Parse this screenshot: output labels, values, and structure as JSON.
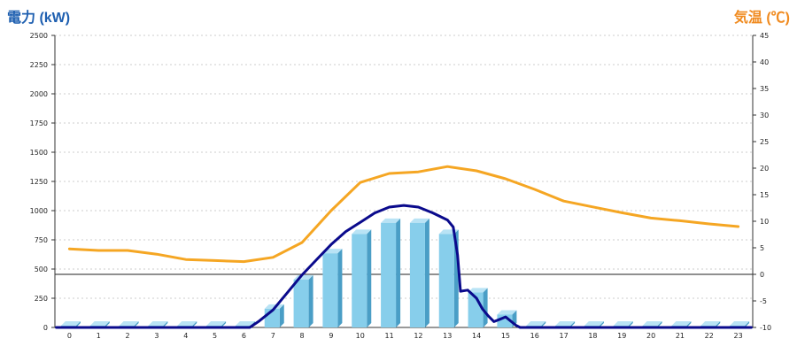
{
  "chart_data": {
    "type": "bar",
    "title": "",
    "left_axis_title": "電力 (kW)",
    "right_axis_title": "気温 (℃)",
    "categories": [
      "0",
      "1",
      "2",
      "3",
      "4",
      "5",
      "6",
      "7",
      "8",
      "9",
      "10",
      "11",
      "12",
      "13",
      "14",
      "15",
      "16",
      "17",
      "18",
      "19",
      "20",
      "21",
      "22",
      "23"
    ],
    "y_left": {
      "min": 0,
      "max": 2500,
      "ticks": [
        0,
        250,
        500,
        750,
        1000,
        1250,
        1500,
        1750,
        2000,
        2250,
        2500
      ]
    },
    "y_right": {
      "min": -10,
      "max": 45,
      "ticks": [
        -10,
        -5,
        0,
        5,
        10,
        15,
        20,
        25,
        30,
        35,
        40,
        45
      ]
    },
    "grid": true,
    "series": [
      {
        "type": "bar",
        "axis": "left",
        "color": "#87ceeb",
        "values": [
          10,
          10,
          10,
          10,
          10,
          10,
          10,
          160,
          410,
          635,
          800,
          895,
          895,
          800,
          300,
          110,
          10,
          10,
          10,
          10,
          10,
          10,
          10,
          10
        ]
      },
      {
        "type": "line",
        "axis": "left",
        "color": "#0a0a8c",
        "points": [
          [
            -0.45,
            0
          ],
          [
            6.2,
            0
          ],
          [
            6.5,
            50
          ],
          [
            7,
            150
          ],
          [
            7.5,
            300
          ],
          [
            8,
            450
          ],
          [
            8.5,
            580
          ],
          [
            9,
            710
          ],
          [
            9.5,
            820
          ],
          [
            10,
            900
          ],
          [
            10.5,
            980
          ],
          [
            11,
            1030
          ],
          [
            11.5,
            1045
          ],
          [
            12,
            1030
          ],
          [
            12.5,
            980
          ],
          [
            13,
            920
          ],
          [
            13.2,
            860
          ],
          [
            13.35,
            620
          ],
          [
            13.45,
            310
          ],
          [
            13.7,
            320
          ],
          [
            14,
            250
          ],
          [
            14.2,
            160
          ],
          [
            14.4,
            100
          ],
          [
            14.6,
            50
          ],
          [
            14.8,
            70
          ],
          [
            15,
            90
          ],
          [
            15.2,
            50
          ],
          [
            15.35,
            20
          ],
          [
            15.5,
            0
          ],
          [
            23.45,
            0
          ]
        ]
      },
      {
        "type": "line",
        "axis": "right",
        "color": "#f5a623",
        "points": [
          [
            0,
            4.8
          ],
          [
            1,
            4.5
          ],
          [
            2,
            4.5
          ],
          [
            3,
            3.8
          ],
          [
            4,
            2.8
          ],
          [
            5,
            2.6
          ],
          [
            6,
            2.4
          ],
          [
            7,
            3.2
          ],
          [
            8,
            6
          ],
          [
            9,
            12
          ],
          [
            10,
            17.3
          ],
          [
            11,
            19
          ],
          [
            12,
            19.3
          ],
          [
            13,
            20.3
          ],
          [
            14,
            19.5
          ],
          [
            15,
            18
          ],
          [
            16,
            16
          ],
          [
            17,
            13.8
          ],
          [
            18,
            12.7
          ],
          [
            19,
            11.6
          ],
          [
            20,
            10.6
          ],
          [
            21,
            10.1
          ],
          [
            22,
            9.5
          ],
          [
            23,
            9
          ]
        ]
      }
    ]
  }
}
